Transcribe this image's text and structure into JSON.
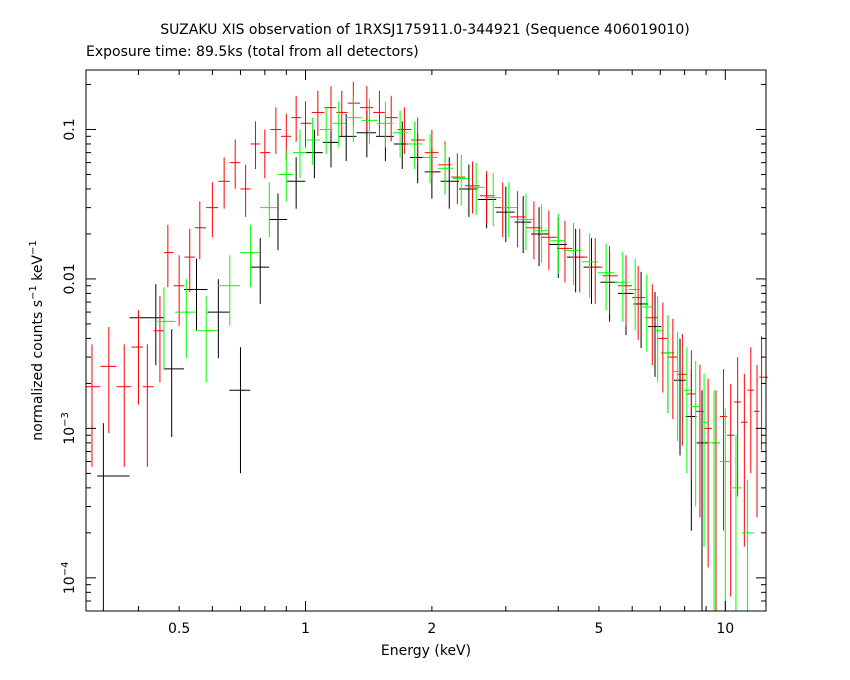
{
  "chart_data": {
    "type": "scatter",
    "title": "SUZAKU XIS observation of 1RXSJ175911.0-344921 (Sequence 406019010)",
    "subtitle": "Exposure time: 89.5ks (total from all detectors)",
    "xlabel": "Energy (keV)",
    "ylabel_main": "normalized counts s",
    "ylabel_exp1": "−1",
    "ylabel_mid": " keV",
    "ylabel_exp2": "−1",
    "x_scale": "log",
    "y_scale": "log",
    "xlim": [
      0.3,
      12.5
    ],
    "ylim": [
      6e-05,
      0.25
    ],
    "x_ticks": [
      {
        "value": 0.5,
        "label": "0.5"
      },
      {
        "value": 1,
        "label": "1"
      },
      {
        "value": 2,
        "label": "2"
      },
      {
        "value": 5,
        "label": "5"
      },
      {
        "value": 10,
        "label": "10"
      }
    ],
    "y_ticks": [
      {
        "value": 0.0001,
        "base": "10",
        "exp": "−4"
      },
      {
        "value": 0.001,
        "base": "10",
        "exp": "−3"
      },
      {
        "value": 0.01,
        "label": "0.01"
      },
      {
        "value": 0.1,
        "label": "0.1"
      }
    ],
    "grid": false,
    "legend": "none",
    "series": [
      {
        "color": "#000000",
        "points": [
          {
            "x": 0.33,
            "y": 0.00048
          },
          {
            "x": 0.44,
            "y": 0.0055
          },
          {
            "x": 0.48,
            "y": 0.0025
          },
          {
            "x": 0.55,
            "y": 0.0085
          },
          {
            "x": 0.62,
            "y": 0.006
          },
          {
            "x": 0.7,
            "y": 0.0018
          },
          {
            "x": 0.78,
            "y": 0.012
          },
          {
            "x": 0.86,
            "y": 0.025
          },
          {
            "x": 0.95,
            "y": 0.045
          },
          {
            "x": 1.05,
            "y": 0.07
          },
          {
            "x": 1.15,
            "y": 0.082
          },
          {
            "x": 1.25,
            "y": 0.09
          },
          {
            "x": 1.4,
            "y": 0.095
          },
          {
            "x": 1.55,
            "y": 0.09
          },
          {
            "x": 1.7,
            "y": 0.08
          },
          {
            "x": 1.85,
            "y": 0.065
          },
          {
            "x": 2.0,
            "y": 0.052
          },
          {
            "x": 2.2,
            "y": 0.045
          },
          {
            "x": 2.45,
            "y": 0.04
          },
          {
            "x": 2.7,
            "y": 0.034
          },
          {
            "x": 3.0,
            "y": 0.028
          },
          {
            "x": 3.3,
            "y": 0.024
          },
          {
            "x": 3.6,
            "y": 0.02
          },
          {
            "x": 4.0,
            "y": 0.017
          },
          {
            "x": 4.4,
            "y": 0.014
          },
          {
            "x": 4.8,
            "y": 0.012
          },
          {
            "x": 5.3,
            "y": 0.0095
          },
          {
            "x": 5.8,
            "y": 0.008
          },
          {
            "x": 6.3,
            "y": 0.0068
          },
          {
            "x": 6.8,
            "y": 0.0048
          },
          {
            "x": 7.3,
            "y": 0.0032
          },
          {
            "x": 7.8,
            "y": 0.0021
          },
          {
            "x": 8.3,
            "y": 0.0012
          },
          {
            "x": 8.8,
            "y": 0.0008
          }
        ]
      },
      {
        "color": "#ff0000",
        "points": [
          {
            "x": 0.31,
            "y": 0.0019
          },
          {
            "x": 0.34,
            "y": 0.0026
          },
          {
            "x": 0.37,
            "y": 0.0019
          },
          {
            "x": 0.4,
            "y": 0.0035
          },
          {
            "x": 0.42,
            "y": 0.0019
          },
          {
            "x": 0.45,
            "y": 0.0045
          },
          {
            "x": 0.47,
            "y": 0.015
          },
          {
            "x": 0.5,
            "y": 0.009
          },
          {
            "x": 0.53,
            "y": 0.014
          },
          {
            "x": 0.56,
            "y": 0.022
          },
          {
            "x": 0.6,
            "y": 0.03
          },
          {
            "x": 0.64,
            "y": 0.045
          },
          {
            "x": 0.68,
            "y": 0.06
          },
          {
            "x": 0.72,
            "y": 0.04
          },
          {
            "x": 0.76,
            "y": 0.08
          },
          {
            "x": 0.8,
            "y": 0.07
          },
          {
            "x": 0.85,
            "y": 0.1
          },
          {
            "x": 0.9,
            "y": 0.09
          },
          {
            "x": 0.95,
            "y": 0.12
          },
          {
            "x": 1.0,
            "y": 0.11
          },
          {
            "x": 1.07,
            "y": 0.13
          },
          {
            "x": 1.15,
            "y": 0.14
          },
          {
            "x": 1.22,
            "y": 0.13
          },
          {
            "x": 1.3,
            "y": 0.15
          },
          {
            "x": 1.4,
            "y": 0.14
          },
          {
            "x": 1.5,
            "y": 0.13
          },
          {
            "x": 1.6,
            "y": 0.12
          },
          {
            "x": 1.72,
            "y": 0.1
          },
          {
            "x": 1.85,
            "y": 0.085
          },
          {
            "x": 2.0,
            "y": 0.07
          },
          {
            "x": 2.15,
            "y": 0.058
          },
          {
            "x": 2.3,
            "y": 0.048
          },
          {
            "x": 2.5,
            "y": 0.042
          },
          {
            "x": 2.7,
            "y": 0.036
          },
          {
            "x": 2.95,
            "y": 0.03
          },
          {
            "x": 3.2,
            "y": 0.026
          },
          {
            "x": 3.5,
            "y": 0.022
          },
          {
            "x": 3.8,
            "y": 0.019
          },
          {
            "x": 4.15,
            "y": 0.016
          },
          {
            "x": 4.5,
            "y": 0.014
          },
          {
            "x": 4.9,
            "y": 0.012
          },
          {
            "x": 5.3,
            "y": 0.0105
          },
          {
            "x": 5.8,
            "y": 0.009
          },
          {
            "x": 6.2,
            "y": 0.0075
          },
          {
            "x": 6.7,
            "y": 0.0055
          },
          {
            "x": 7.1,
            "y": 0.004
          },
          {
            "x": 7.5,
            "y": 0.003
          },
          {
            "x": 7.9,
            "y": 0.0023
          },
          {
            "x": 8.3,
            "y": 0.0017
          },
          {
            "x": 8.7,
            "y": 0.0013
          },
          {
            "x": 9.1,
            "y": 0.001
          },
          {
            "x": 9.5,
            "y": 0.0008
          },
          {
            "x": 9.9,
            "y": 0.0012
          },
          {
            "x": 10.3,
            "y": 0.0009
          },
          {
            "x": 10.7,
            "y": 0.0015
          },
          {
            "x": 11.1,
            "y": 0.0011
          },
          {
            "x": 11.5,
            "y": 0.0018
          },
          {
            "x": 11.9,
            "y": 0.0013
          },
          {
            "x": 12.2,
            "y": 0.0022
          }
        ]
      },
      {
        "color": "#00ff00",
        "points": [
          {
            "x": 0.46,
            "y": 0.0052
          },
          {
            "x": 0.52,
            "y": 0.006
          },
          {
            "x": 0.58,
            "y": 0.0045
          },
          {
            "x": 0.66,
            "y": 0.009
          },
          {
            "x": 0.74,
            "y": 0.015
          },
          {
            "x": 0.82,
            "y": 0.03
          },
          {
            "x": 0.9,
            "y": 0.05
          },
          {
            "x": 0.97,
            "y": 0.07
          },
          {
            "x": 1.04,
            "y": 0.085
          },
          {
            "x": 1.12,
            "y": 0.1
          },
          {
            "x": 1.2,
            "y": 0.11
          },
          {
            "x": 1.3,
            "y": 0.12
          },
          {
            "x": 1.42,
            "y": 0.115
          },
          {
            "x": 1.55,
            "y": 0.11
          },
          {
            "x": 1.68,
            "y": 0.095
          },
          {
            "x": 1.82,
            "y": 0.08
          },
          {
            "x": 1.98,
            "y": 0.065
          },
          {
            "x": 2.15,
            "y": 0.055
          },
          {
            "x": 2.35,
            "y": 0.047
          },
          {
            "x": 2.55,
            "y": 0.041
          },
          {
            "x": 2.8,
            "y": 0.035
          },
          {
            "x": 3.05,
            "y": 0.03
          },
          {
            "x": 3.35,
            "y": 0.025
          },
          {
            "x": 3.65,
            "y": 0.021
          },
          {
            "x": 4.0,
            "y": 0.018
          },
          {
            "x": 4.35,
            "y": 0.0155
          },
          {
            "x": 4.75,
            "y": 0.013
          },
          {
            "x": 5.2,
            "y": 0.011
          },
          {
            "x": 5.7,
            "y": 0.0095
          },
          {
            "x": 6.1,
            "y": 0.0085
          },
          {
            "x": 6.5,
            "y": 0.0065
          },
          {
            "x": 6.9,
            "y": 0.0045
          },
          {
            "x": 7.3,
            "y": 0.0032
          },
          {
            "x": 7.7,
            "y": 0.0024
          },
          {
            "x": 8.1,
            "y": 0.0018
          },
          {
            "x": 8.5,
            "y": 0.0014
          },
          {
            "x": 8.9,
            "y": 0.0011
          },
          {
            "x": 9.4,
            "y": 0.0008
          },
          {
            "x": 10.0,
            "y": 0.0006
          },
          {
            "x": 10.6,
            "y": 0.0004
          },
          {
            "x": 11.3,
            "y": 0.0002
          }
        ]
      }
    ]
  }
}
